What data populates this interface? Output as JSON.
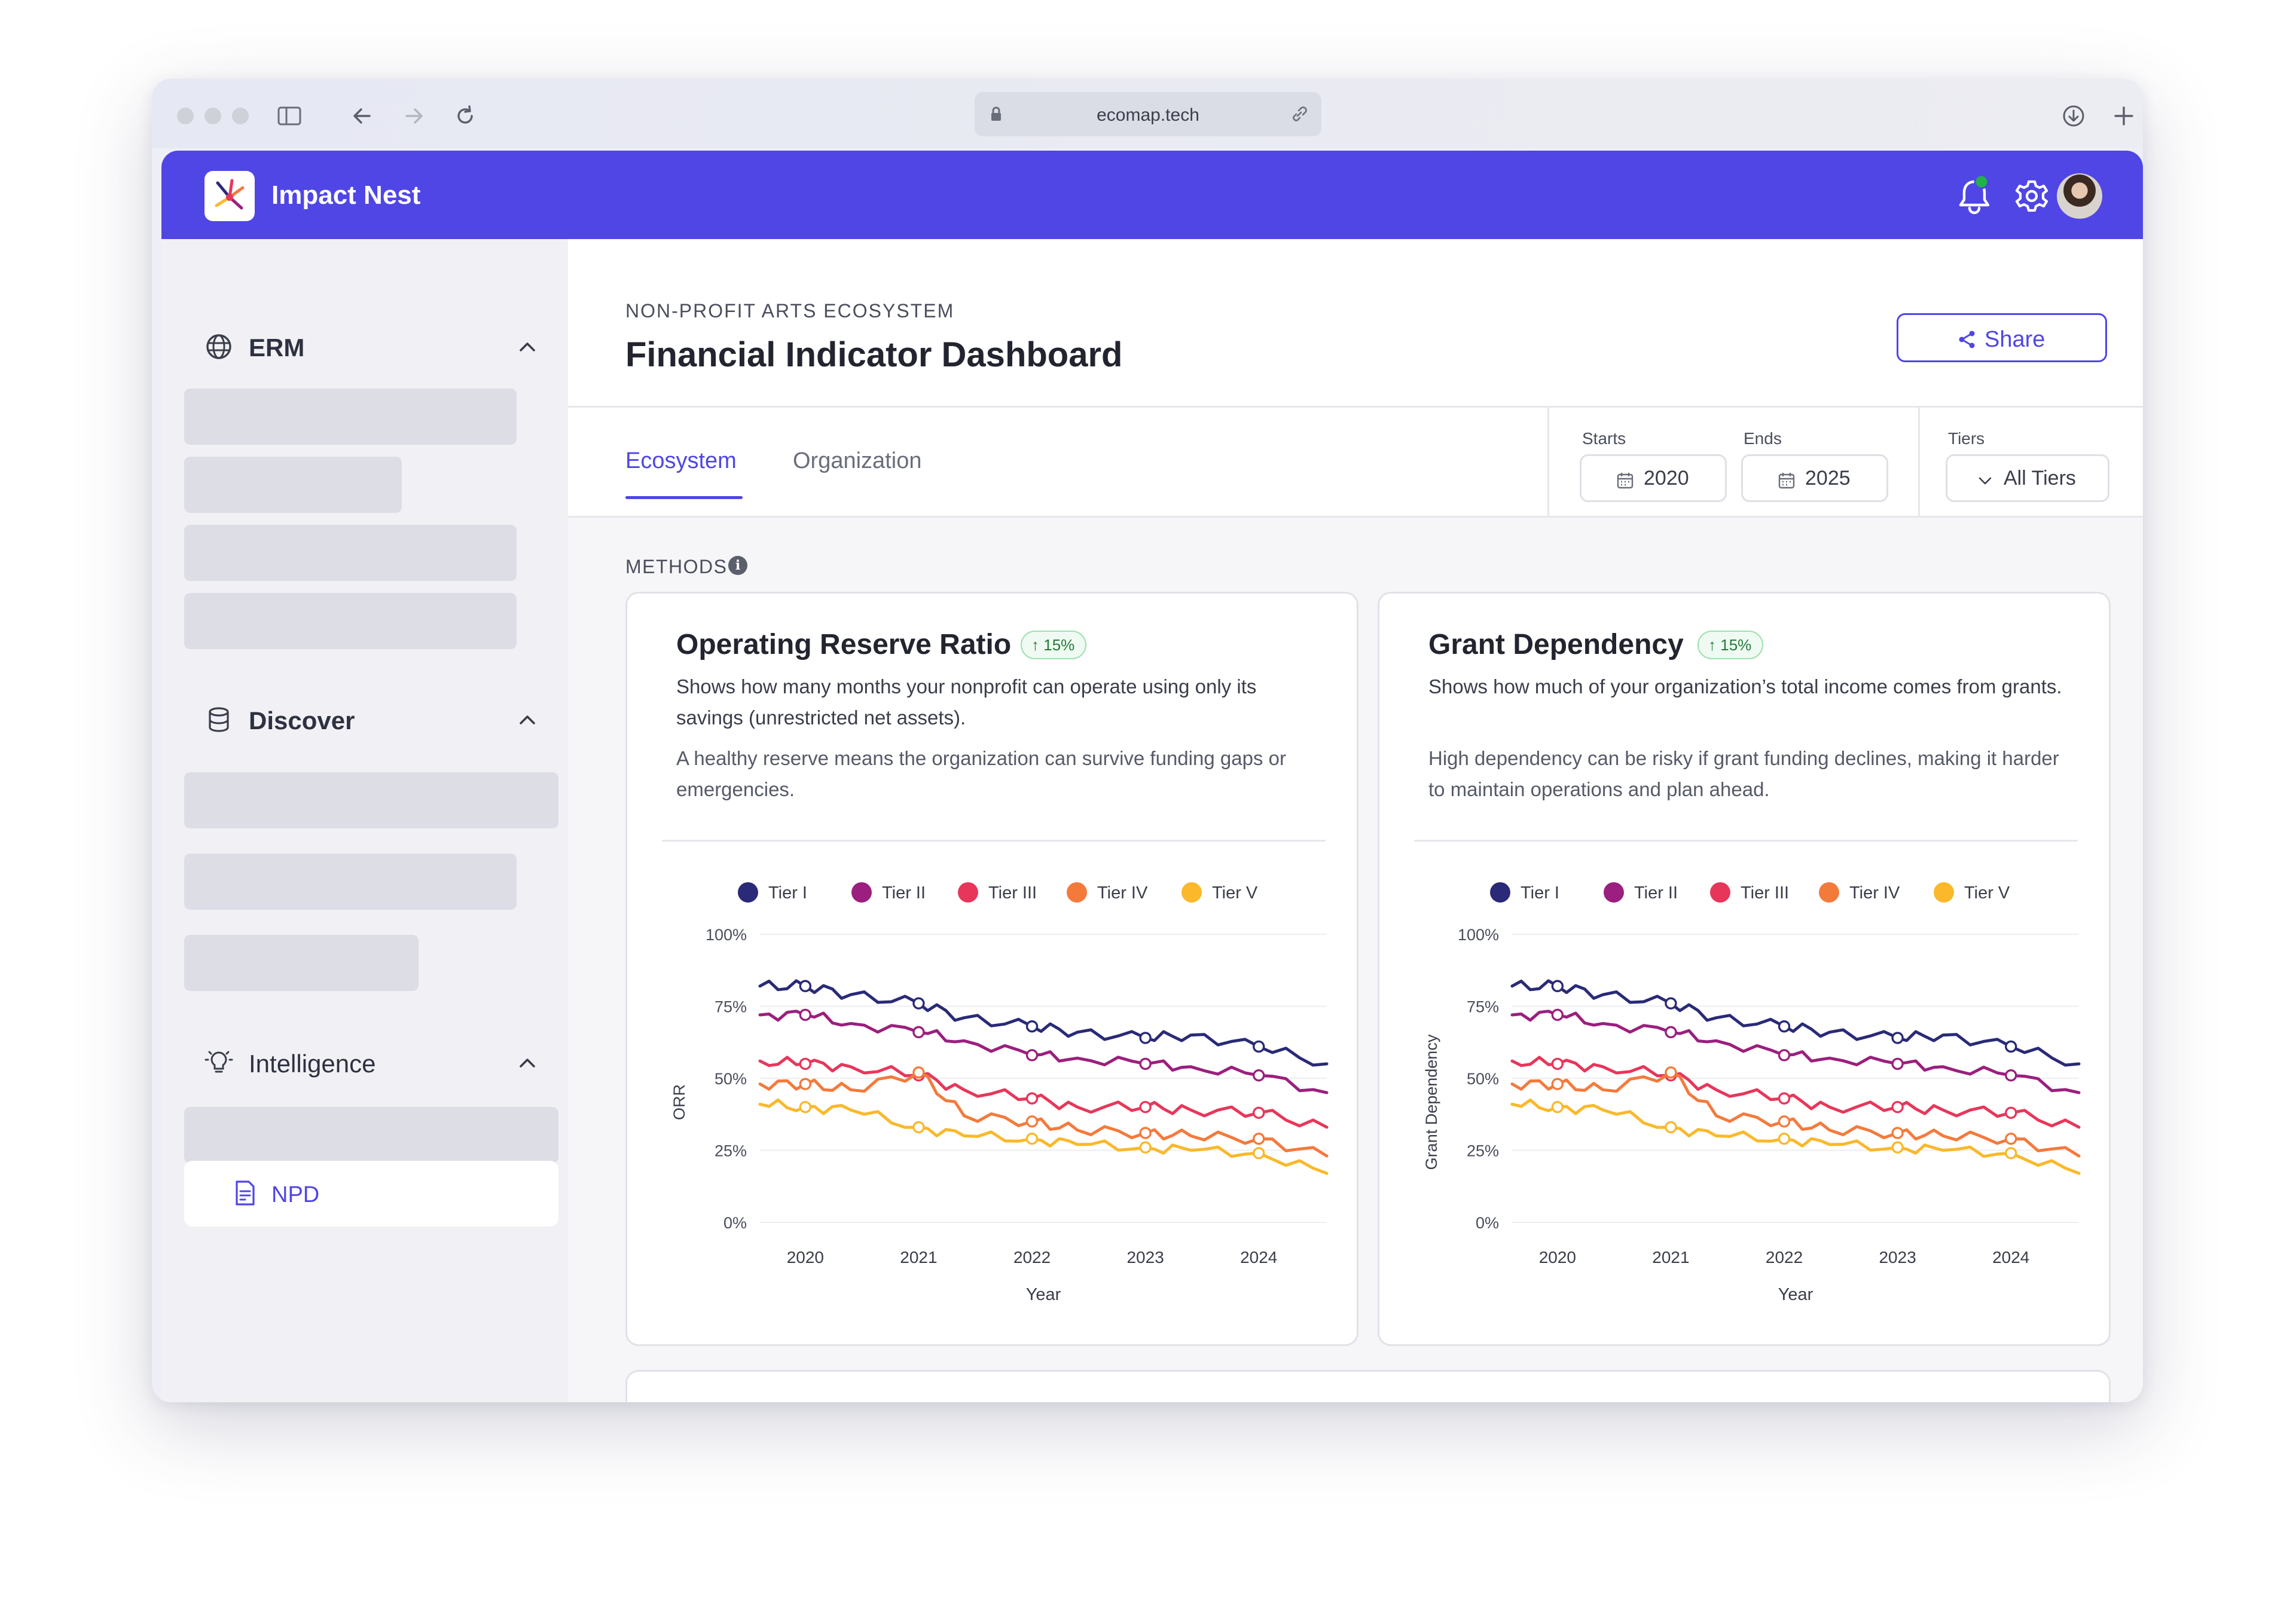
{
  "browser": {
    "url": "ecomap.tech"
  },
  "app": {
    "brand": "Impact Nest"
  },
  "sidebar": {
    "sections": [
      {
        "title": "ERM",
        "icon": "globe-icon"
      },
      {
        "title": "Discover",
        "icon": "database-icon"
      },
      {
        "title": "Intelligence",
        "icon": "lightbulb-icon"
      }
    ],
    "active_item": {
      "label": "NPD",
      "icon": "document-icon"
    }
  },
  "header": {
    "eyebrow": "NON-PROFIT ARTS ECOSYSTEM",
    "title": "Financial Indicator Dashboard",
    "share_label": "Share"
  },
  "tabs": [
    {
      "label": "Ecosystem",
      "active": true
    },
    {
      "label": "Organization",
      "active": false
    }
  ],
  "filters": {
    "starts_label": "Starts",
    "starts_value": "2020",
    "ends_label": "Ends",
    "ends_value": "2025",
    "tiers_label": "Tiers",
    "tiers_value": "All Tiers"
  },
  "methods_label": "METHODS",
  "colors": {
    "accent": "#4f46e5",
    "tier1": "#2a2a78",
    "tier2": "#9b1f7e",
    "tier3": "#e8365a",
    "tier4": "#f47a3c",
    "tier5": "#fbb82a"
  },
  "cards": [
    {
      "title": "Operating Reserve Ratio",
      "badge": "15%",
      "desc1": "Shows how many months your nonprofit can operate using only its savings (unrestricted net assets).",
      "desc2": "A healthy reserve means the organization can survive funding gaps or emergencies.",
      "chart_data": {
        "type": "line",
        "xlabel": "Year",
        "ylabel": "ORR",
        "ylim": [
          0,
          100
        ],
        "y_ticks": [
          "100%",
          "75%",
          "50%",
          "25%",
          "0%"
        ],
        "x_ticks": [
          "2020",
          "2021",
          "2022",
          "2023",
          "2024"
        ],
        "grid": true,
        "legend_position": "top",
        "x": [
          2019.6,
          2020.0,
          2020.4,
          2021.0,
          2021.4,
          2022.0,
          2022.4,
          2023.0,
          2023.4,
          2024.0,
          2024.6
        ],
        "series": [
          {
            "name": "Tier I",
            "values": [
              82,
              82,
              79,
              76,
              71,
              68,
              66,
              64,
              65,
              61,
              55
            ]
          },
          {
            "name": "Tier II",
            "values": [
              72,
              72,
              69,
              66,
              63,
              58,
              57,
              55,
              54,
              51,
              45
            ]
          },
          {
            "name": "Tier III",
            "values": [
              56,
              55,
              54,
              51,
              46,
              43,
              40,
              40,
              39,
              38,
              33
            ]
          },
          {
            "name": "Tier IV",
            "values": [
              48,
              48,
              46,
              52,
              37,
              35,
              32,
              31,
              30,
              29,
              23
            ]
          },
          {
            "name": "Tier V",
            "values": [
              41,
              40,
              39,
              33,
              30,
              29,
              27,
              26,
              25,
              24,
              17
            ]
          }
        ]
      }
    },
    {
      "title": "Grant Dependency",
      "badge": "15%",
      "desc1": "Shows how much of your organization’s total income comes from grants.",
      "desc2": "High dependency can be risky if grant funding declines, making it harder to maintain operations and plan ahead.",
      "chart_data": {
        "type": "line",
        "xlabel": "Year",
        "ylabel": "Grant Dependency",
        "ylim": [
          0,
          100
        ],
        "y_ticks": [
          "100%",
          "75%",
          "50%",
          "25%",
          "0%"
        ],
        "x_ticks": [
          "2020",
          "2021",
          "2022",
          "2023",
          "2024"
        ],
        "grid": true,
        "legend_position": "top",
        "x": [
          2019.6,
          2020.0,
          2020.4,
          2021.0,
          2021.4,
          2022.0,
          2022.4,
          2023.0,
          2023.4,
          2024.0,
          2024.6
        ],
        "series": [
          {
            "name": "Tier I",
            "values": [
              82,
              82,
              79,
              76,
              71,
              68,
              66,
              64,
              65,
              61,
              55
            ]
          },
          {
            "name": "Tier II",
            "values": [
              72,
              72,
              69,
              66,
              63,
              58,
              57,
              55,
              54,
              51,
              45
            ]
          },
          {
            "name": "Tier III",
            "values": [
              56,
              55,
              54,
              51,
              46,
              43,
              40,
              40,
              39,
              38,
              33
            ]
          },
          {
            "name": "Tier IV",
            "values": [
              48,
              48,
              46,
              52,
              37,
              35,
              32,
              31,
              30,
              29,
              23
            ]
          },
          {
            "name": "Tier V",
            "values": [
              41,
              40,
              39,
              33,
              30,
              29,
              27,
              26,
              25,
              24,
              17
            ]
          }
        ]
      }
    }
  ]
}
